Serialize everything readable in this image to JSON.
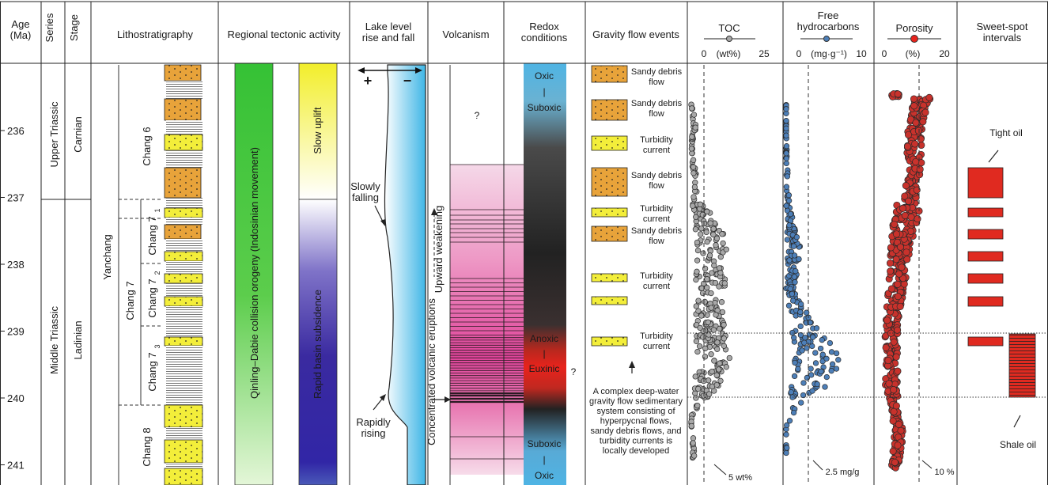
{
  "headers": {
    "age": "Age\n(Ma)",
    "series": "Series",
    "stage": "Stage",
    "litho": "Lithostratigraphy",
    "tectonic": "Regional tectonic activity",
    "lake": "Lake level\nrise and fall",
    "volcanism": "Volcanism",
    "redox": "Redox\nconditions",
    "gravity": "Gravity flow events",
    "toc": "TOC",
    "toc_scale": [
      "0",
      "(wt%)",
      "25"
    ],
    "freehc": "Free\nhydrocarbons",
    "freehc_scale": [
      "0",
      "(mg·g⁻¹)",
      "10"
    ],
    "porosity": "Porosity",
    "porosity_scale": [
      "0",
      "(%)",
      "20"
    ],
    "sweet": "Sweet-spot\nintervals"
  },
  "ages": [
    "236",
    "237",
    "238",
    "239",
    "240",
    "241"
  ],
  "series": {
    "upper": "Upper Triassic",
    "middle": "Middle Triassic"
  },
  "stages": {
    "carnian": "Carnian",
    "ladinian": "Ladinian"
  },
  "litho": {
    "yanchang": "Yanchang",
    "chang6": "Chang 6",
    "chang7": "Chang 7",
    "chang7_1": "Chang 7",
    "chang7_2": "Chang 7",
    "chang7_3": "Chang 7",
    "sub1": "1",
    "sub2": "2",
    "sub3": "3",
    "chang8": "Chang 8"
  },
  "tectonic": {
    "orogeny": "Qinling–Dabie collision orogeny (Indosinian movement)",
    "uplift": "Slow uplift",
    "subsidence": "Rapid basin subsidence"
  },
  "lake": {
    "plus": "+",
    "minus": "−",
    "slowly": "Slowly\nfalling",
    "rapidly": "Rapidly\nrising"
  },
  "volcanism": {
    "question": "?",
    "upward": "Upward weakening",
    "concentrated": "Concentrated volcanic eruptions"
  },
  "redox": {
    "oxic_top": "Oxic",
    "suboxic_top": "Suboxic",
    "anoxic": "Anoxic",
    "euxinic": "Euxinic",
    "question": "?",
    "suboxic_bottom": "Suboxic",
    "oxic_bottom": "Oxic",
    "bar": "|"
  },
  "gravity": {
    "events": [
      "Sandy debris\nflow",
      "Sandy debris\nflow",
      "Turbidity\ncurrent",
      "Sandy debris\nflow",
      "Turbidity\ncurrent",
      "Sandy debris\nflow",
      "Turbidity\ncurrent",
      "Turbidity\ncurrent"
    ],
    "note": "A complex deep-water\ngravity flow sedimentary\nsystem consisting of\nhyperpycnal flows,\nsandy debris flows, and\nturbidity currents is\nlocally developed"
  },
  "thresholds": {
    "toc": "5 wt%",
    "freehc": "2.5 mg/g",
    "porosity": "10 %"
  },
  "sweet": {
    "tight": "Tight oil",
    "shale": "Shale oil"
  },
  "colors": {
    "sand_orange": "#e8a33a",
    "sand_yellow": "#f3ee3a",
    "orogeny_green": "#3ec43e",
    "subsidence_blue": "#3a2aa0",
    "lake_blue": "#5ec8ea",
    "volc_pink": "#e0449a",
    "redox_blue": "#58b6e0",
    "euxinic_red": "#e8231c",
    "toc_grey": "#a8a8a8",
    "hc_blue": "#4d7fb8",
    "por_red": "#c8322c",
    "sweet_red": "#e02a20"
  },
  "chart_data": [
    {
      "type": "scatter",
      "name": "TOC",
      "xlabel": "(wt%)",
      "xlim": [
        0,
        25
      ],
      "threshold": 5,
      "points": [
        {
          "age": 235.6,
          "value": 0.3
        },
        {
          "age": 235.9,
          "value": 1.5
        },
        {
          "age": 236.2,
          "value": 0.5
        },
        {
          "age": 236.5,
          "value": 1.0
        },
        {
          "age": 236.8,
          "value": 2.0
        },
        {
          "age": 237.0,
          "value": 1.2
        },
        {
          "age": 237.4,
          "value": 5.0
        },
        {
          "age": 237.8,
          "value": 6.5
        },
        {
          "age": 238.2,
          "value": 6.0
        },
        {
          "age": 238.6,
          "value": 5.5
        },
        {
          "age": 239.0,
          "value": 6.0
        },
        {
          "age": 239.4,
          "value": 7.0
        },
        {
          "age": 239.8,
          "value": 5.0
        },
        {
          "age": 240.3,
          "value": 0.4
        },
        {
          "age": 240.8,
          "value": 1.0
        }
      ]
    },
    {
      "type": "scatter",
      "name": "Free hydrocarbons",
      "xlabel": "(mg·g⁻¹)",
      "xlim": [
        0,
        10
      ],
      "threshold": 2.5,
      "points": [
        {
          "age": 235.6,
          "value": 0.1
        },
        {
          "age": 236.2,
          "value": 0.2
        },
        {
          "age": 236.8,
          "value": 0.3
        },
        {
          "age": 237.4,
          "value": 0.6
        },
        {
          "age": 237.8,
          "value": 1.2
        },
        {
          "age": 238.4,
          "value": 0.6
        },
        {
          "age": 239.0,
          "value": 2.5
        },
        {
          "age": 239.4,
          "value": 4.0
        },
        {
          "age": 239.8,
          "value": 3.0
        },
        {
          "age": 240.4,
          "value": 0.2
        },
        {
          "age": 241.0,
          "value": 0.2
        }
      ]
    },
    {
      "type": "scatter",
      "name": "Porosity",
      "xlabel": "(%)",
      "xlim": [
        0,
        20
      ],
      "threshold": 10,
      "points": [
        {
          "age": 235.5,
          "value": 12
        },
        {
          "age": 236.0,
          "value": 10
        },
        {
          "age": 236.5,
          "value": 10
        },
        {
          "age": 237.0,
          "value": 9
        },
        {
          "age": 237.5,
          "value": 7
        },
        {
          "age": 238.0,
          "value": 6
        },
        {
          "age": 238.5,
          "value": 5
        },
        {
          "age": 239.0,
          "value": 4
        },
        {
          "age": 239.5,
          "value": 4
        },
        {
          "age": 240.0,
          "value": 4
        },
        {
          "age": 240.5,
          "value": 6
        },
        {
          "age": 241.0,
          "value": 5
        }
      ]
    }
  ]
}
